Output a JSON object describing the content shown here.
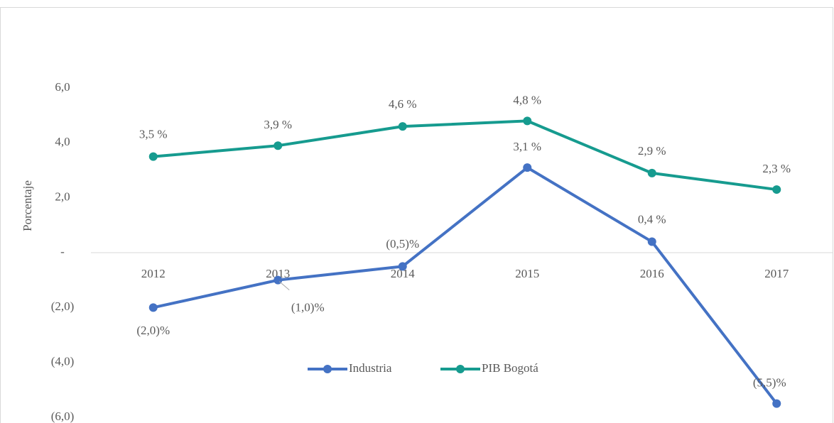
{
  "chart_data": {
    "type": "line",
    "y_label": "Porcentaje",
    "categories": [
      "2012",
      "2013",
      "2014",
      "2015",
      "2016",
      "2017"
    ],
    "series": [
      {
        "name": "Industria",
        "color": "#4472c4",
        "values": [
          -2.0,
          -1.0,
          -0.5,
          3.1,
          0.4,
          -5.5
        ],
        "value_labels": [
          "(2,0)%",
          "(1,0)%",
          "(0,5)%",
          "3,1 %",
          "0,4 %",
          "(5,5)%"
        ]
      },
      {
        "name": "PIB Bogotá",
        "color": "#169b8f",
        "values": [
          3.5,
          3.9,
          4.6,
          4.8,
          2.9,
          2.3
        ],
        "value_labels": [
          "3,5 %",
          "3,9 %",
          "4,6 %",
          "4,8 %",
          "2,9 %",
          "2,3 %"
        ]
      }
    ],
    "ylim": [
      -6,
      6
    ],
    "yticks": [
      {
        "value": 6,
        "label": "6,0"
      },
      {
        "value": 4,
        "label": "4,0"
      },
      {
        "value": 2,
        "label": "2,0"
      },
      {
        "value": 0,
        "label": "-"
      },
      {
        "value": -2,
        "label": "(2,0)"
      },
      {
        "value": -4,
        "label": "(4,0)"
      },
      {
        "value": -6,
        "label": "(6,0)"
      }
    ],
    "legend": "bottom"
  }
}
